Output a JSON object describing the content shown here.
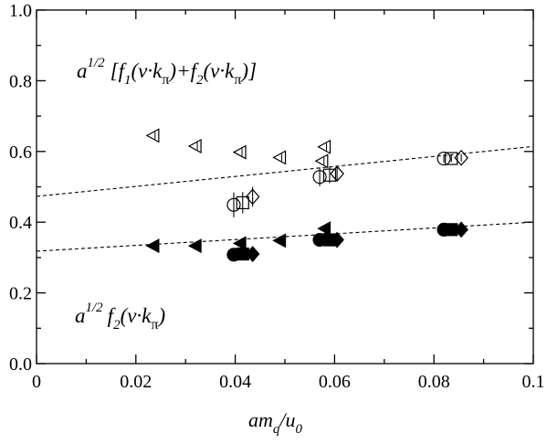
{
  "chart_data": {
    "type": "scatter",
    "title": "",
    "xlabel": "",
    "ylabel": "",
    "xlim": [
      0,
      0.1
    ],
    "ylim": [
      0,
      1.0
    ],
    "x_ticks": [
      "0",
      "0.02",
      "0.04",
      "0.06",
      "0.08",
      "0.1"
    ],
    "y_ticks": [
      "0.0",
      "0.2",
      "0.4",
      "0.6",
      "0.8",
      "1.0"
    ],
    "grid": false,
    "series": [
      {
        "marker": "triangle-left",
        "filled": false,
        "points": [
          [
            0.0235,
            0.645
          ],
          [
            0.032,
            0.615
          ],
          [
            0.041,
            0.598
          ],
          [
            0.049,
            0.583
          ],
          [
            0.058,
            0.613
          ]
        ]
      },
      {
        "marker": "triangle-left",
        "filled": false,
        "points": [
          [
            0.0575,
            0.573
          ]
        ]
      },
      {
        "marker": "circle",
        "filled": false,
        "points": [
          [
            0.0397,
            0.449,
            0.035
          ],
          [
            0.057,
            0.528,
            0.026
          ],
          [
            0.082,
            0.58,
            0.012
          ]
        ]
      },
      {
        "marker": "square",
        "filled": false,
        "points": [
          [
            0.0415,
            0.455,
            0.03
          ],
          [
            0.059,
            0.533,
            0.023
          ],
          [
            0.0835,
            0.58,
            0.01
          ]
        ]
      },
      {
        "marker": "diamond",
        "filled": false,
        "points": [
          [
            0.0435,
            0.472,
            0.028
          ],
          [
            0.0605,
            0.537,
            0.02
          ],
          [
            0.0855,
            0.582,
            0.01
          ]
        ]
      },
      {
        "marker": "triangle-left",
        "filled": true,
        "points": [
          [
            0.0235,
            0.333
          ],
          [
            0.032,
            0.333
          ],
          [
            0.041,
            0.34
          ],
          [
            0.049,
            0.348
          ],
          [
            0.058,
            0.382
          ]
        ]
      },
      {
        "marker": "triangle-left",
        "filled": true,
        "points": [
          [
            0.0575,
            0.355
          ]
        ]
      },
      {
        "marker": "circle",
        "filled": true,
        "points": [
          [
            0.0397,
            0.308
          ],
          [
            0.057,
            0.35
          ],
          [
            0.082,
            0.379
          ]
        ]
      },
      {
        "marker": "square",
        "filled": true,
        "points": [
          [
            0.0415,
            0.31
          ],
          [
            0.059,
            0.35
          ],
          [
            0.0835,
            0.379
          ]
        ]
      },
      {
        "marker": "diamond",
        "filled": true,
        "points": [
          [
            0.0435,
            0.31
          ],
          [
            0.0605,
            0.35
          ],
          [
            0.0855,
            0.379
          ]
        ]
      }
    ],
    "fits": [
      {
        "style": "dashed",
        "points": [
          [
            0,
            0.473
          ],
          [
            0.1,
            0.614
          ]
        ]
      },
      {
        "style": "dashed",
        "points": [
          [
            0,
            0.318
          ],
          [
            0.1,
            0.4
          ]
        ]
      }
    ]
  }
}
